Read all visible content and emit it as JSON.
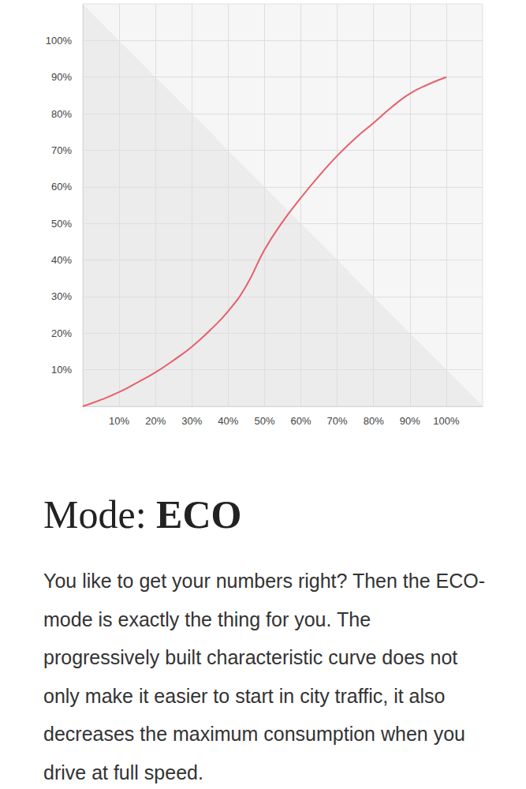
{
  "chart_data": {
    "type": "line",
    "x": [
      0,
      5,
      10,
      15,
      20,
      25,
      30,
      35,
      40,
      45,
      50,
      55,
      60,
      65,
      70,
      75,
      80,
      85,
      90,
      95,
      100
    ],
    "values": [
      0,
      1.8,
      3.9,
      6.5,
      9.3,
      12.6,
      16.3,
      20.8,
      26,
      33,
      42.8,
      50.5,
      57,
      63,
      68.5,
      73.3,
      77.5,
      81.8,
      85.5,
      88,
      90
    ],
    "color": "#e5606a",
    "xlim": [
      0,
      110
    ],
    "ylim": [
      0,
      110
    ],
    "xticks": [
      {
        "value": 10,
        "label": "10%"
      },
      {
        "value": 20,
        "label": "20%"
      },
      {
        "value": 30,
        "label": "30%"
      },
      {
        "value": 40,
        "label": "40%"
      },
      {
        "value": 50,
        "label": "50%"
      },
      {
        "value": 60,
        "label": "60%"
      },
      {
        "value": 70,
        "label": "70%"
      },
      {
        "value": 80,
        "label": "80%"
      },
      {
        "value": 90,
        "label": "90%"
      },
      {
        "value": 100,
        "label": "100%"
      }
    ],
    "yticks": [
      {
        "value": 10,
        "label": "10%"
      },
      {
        "value": 20,
        "label": "20%"
      },
      {
        "value": 30,
        "label": "30%"
      },
      {
        "value": 40,
        "label": "40%"
      },
      {
        "value": 50,
        "label": "50%"
      },
      {
        "value": 60,
        "label": "60%"
      },
      {
        "value": 70,
        "label": "70%"
      },
      {
        "value": 80,
        "label": "80%"
      },
      {
        "value": 90,
        "label": "90%"
      },
      {
        "value": 100,
        "label": "100%"
      }
    ],
    "grid": true
  },
  "text": {
    "heading": {
      "label": "Mode:",
      "mode": "ECO"
    },
    "body": "You like to get your numbers right? Then the ECO-mode is exactly the thing for you. The progressively built characteristic curve does not only make it easier to start in city traffic, it also decreases the maximum consumption when you drive at full speed."
  }
}
